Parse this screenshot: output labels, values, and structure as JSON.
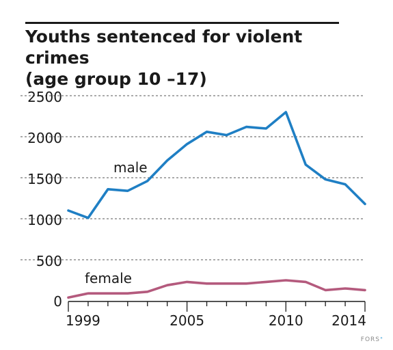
{
  "title": {
    "line1": "Youths sentenced for violent crimes",
    "line2": "(age group 10 –17)"
  },
  "credit": {
    "text": "FORS",
    "dot": "°"
  },
  "colors": {
    "male": "#1f7fc4",
    "female": "#b45a7d",
    "grid": "#555555",
    "axis": "#1a1a1a",
    "text": "#1a1a1a"
  },
  "chart_data": {
    "type": "line",
    "title": "Youths sentenced for violent crimes (age group 10 –17)",
    "xlabel": "",
    "ylabel": "",
    "x": [
      1999,
      2000,
      2001,
      2002,
      2003,
      2004,
      2005,
      2006,
      2007,
      2008,
      2009,
      2010,
      2011,
      2012,
      2013,
      2014
    ],
    "xlim": [
      1999,
      2014
    ],
    "ylim": [
      0,
      2500
    ],
    "x_ticks": [
      1999,
      2005,
      2010,
      2014
    ],
    "y_ticks": [
      0,
      500,
      1000,
      1500,
      2000,
      2500
    ],
    "grid": "horizontal dashed",
    "series": [
      {
        "name": "male",
        "color": "#1f7fc4",
        "values": [
          1100,
          1010,
          1360,
          1340,
          1460,
          1710,
          1910,
          2060,
          2020,
          2120,
          2100,
          2300,
          1660,
          1480,
          1420,
          1180
        ]
      },
      {
        "name": "female",
        "color": "#b45a7d",
        "values": [
          40,
          90,
          90,
          90,
          110,
          190,
          230,
          210,
          210,
          210,
          230,
          250,
          230,
          130,
          150,
          130
        ]
      }
    ]
  }
}
